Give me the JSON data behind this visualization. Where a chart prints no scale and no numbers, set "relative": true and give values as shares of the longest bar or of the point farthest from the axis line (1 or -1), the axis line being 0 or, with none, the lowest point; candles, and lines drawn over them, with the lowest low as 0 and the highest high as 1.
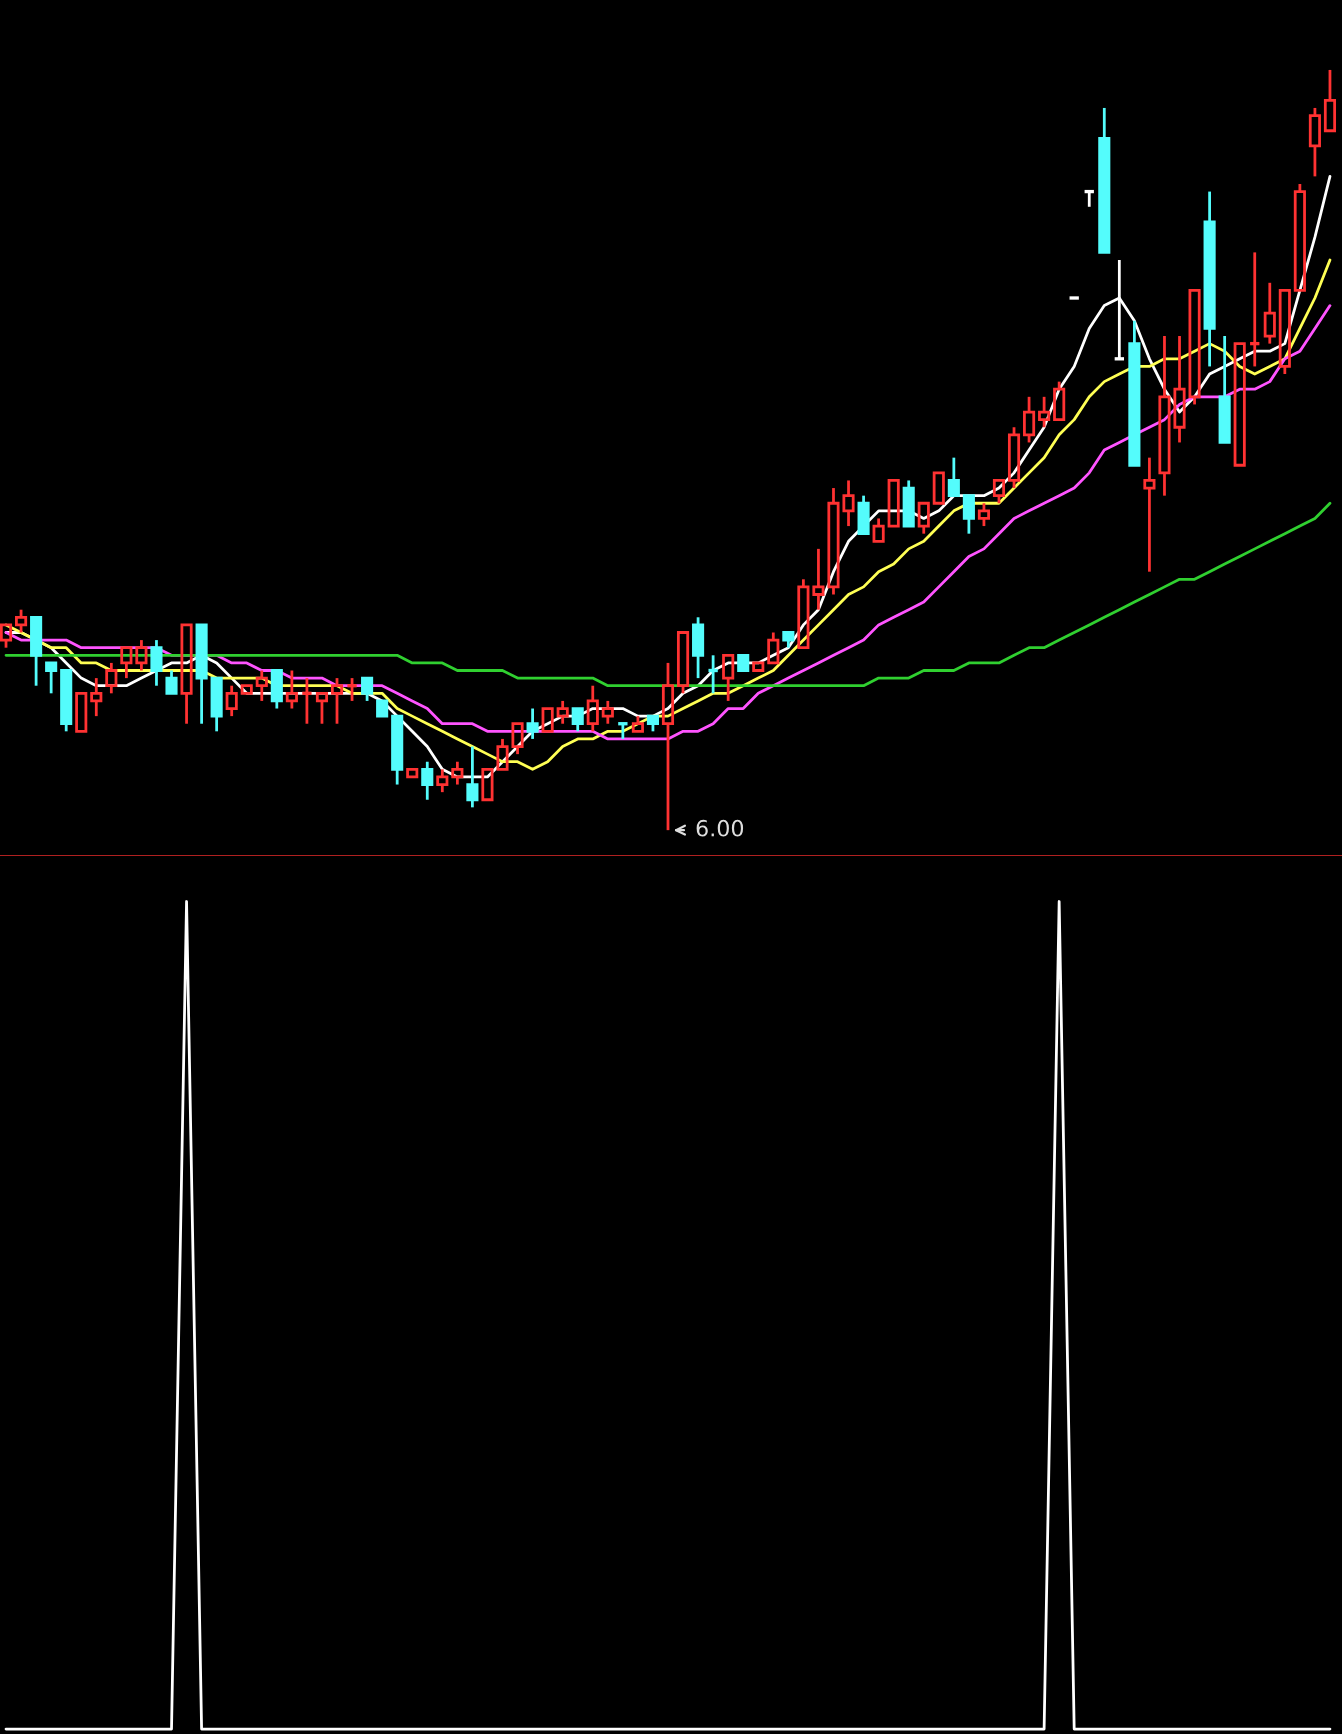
{
  "chart_data": [
    {
      "type": "candlestick",
      "relative": true,
      "categories": [
        null,
        null,
        null,
        null,
        null,
        null,
        null,
        null,
        null,
        null,
        null,
        null,
        null,
        null,
        null,
        null,
        null,
        null,
        null,
        null,
        null,
        null,
        null,
        null,
        null,
        null,
        null,
        null,
        null,
        null,
        null,
        null,
        null,
        null,
        null,
        null,
        null,
        null,
        null,
        null,
        null,
        null,
        null,
        null,
        null,
        null,
        null,
        null,
        null,
        null,
        null,
        null,
        null,
        null,
        null,
        null,
        null,
        null,
        null,
        null,
        null,
        null,
        null,
        null,
        null,
        null,
        null,
        null,
        null,
        null,
        null,
        null,
        null,
        null,
        null,
        null,
        null,
        null,
        null,
        null,
        null,
        null,
        null,
        null,
        null,
        null,
        null,
        null,
        null
      ],
      "ohlc": [
        [
          0.25,
          0.27,
          0.24,
          0.27
        ],
        [
          0.27,
          0.29,
          0.26,
          0.28
        ],
        [
          0.28,
          0.28,
          0.19,
          0.23
        ],
        [
          0.22,
          0.22,
          0.18,
          0.21
        ],
        [
          0.21,
          0.21,
          0.13,
          0.14
        ],
        [
          0.13,
          0.18,
          0.13,
          0.18
        ],
        [
          0.17,
          0.2,
          0.15,
          0.18
        ],
        [
          0.19,
          0.22,
          0.18,
          0.21
        ],
        [
          0.22,
          0.24,
          0.2,
          0.24
        ],
        [
          0.22,
          0.25,
          0.21,
          0.24
        ],
        [
          0.24,
          0.25,
          0.19,
          0.21
        ],
        [
          0.2,
          0.21,
          0.18,
          0.18
        ],
        [
          0.18,
          0.27,
          0.14,
          0.27
        ],
        [
          0.27,
          0.27,
          0.14,
          0.2
        ],
        [
          0.2,
          0.2,
          0.13,
          0.15
        ],
        [
          0.16,
          0.19,
          0.15,
          0.18
        ],
        [
          0.18,
          0.19,
          0.18,
          0.19
        ],
        [
          0.19,
          0.21,
          0.17,
          0.2
        ],
        [
          0.21,
          0.21,
          0.16,
          0.17
        ],
        [
          0.17,
          0.21,
          0.16,
          0.18
        ],
        [
          0.18,
          0.2,
          0.14,
          0.18
        ],
        [
          0.17,
          0.18,
          0.14,
          0.18
        ],
        [
          0.18,
          0.2,
          0.14,
          0.19
        ],
        [
          0.19,
          0.2,
          0.17,
          0.19
        ],
        [
          0.2,
          0.2,
          0.17,
          0.18
        ],
        [
          0.17,
          0.17,
          0.15,
          0.15
        ],
        [
          0.15,
          0.15,
          0.06,
          0.08
        ],
        [
          0.07,
          0.08,
          0.07,
          0.08
        ],
        [
          0.08,
          0.09,
          0.04,
          0.06
        ],
        [
          0.06,
          0.08,
          0.05,
          0.07
        ],
        [
          0.07,
          0.09,
          0.06,
          0.08
        ],
        [
          0.06,
          0.11,
          0.03,
          0.04
        ],
        [
          0.04,
          0.08,
          0.04,
          0.08
        ],
        [
          0.08,
          0.12,
          0.08,
          0.11
        ],
        [
          0.11,
          0.14,
          0.1,
          0.14
        ],
        [
          0.14,
          0.16,
          0.12,
          0.13
        ],
        [
          0.13,
          0.16,
          0.13,
          0.16
        ],
        [
          0.15,
          0.17,
          0.14,
          0.16
        ],
        [
          0.16,
          0.16,
          0.13,
          0.14
        ],
        [
          0.14,
          0.19,
          0.13,
          0.17
        ],
        [
          0.15,
          0.17,
          0.14,
          0.16
        ],
        [
          0.14,
          0.14,
          0.12,
          0.14
        ],
        [
          0.13,
          0.15,
          0.13,
          0.14
        ],
        [
          0.15,
          0.15,
          0.13,
          0.14
        ],
        [
          0.14,
          0.22,
          0,
          0.19
        ],
        [
          0.19,
          0.26,
          0.18,
          0.26
        ],
        [
          0.27,
          0.28,
          0.2,
          0.23
        ],
        [
          0.21,
          0.23,
          0.18,
          0.21
        ],
        [
          0.2,
          0.23,
          0.17,
          0.23
        ],
        [
          0.23,
          0.23,
          0.21,
          0.21
        ],
        [
          0.21,
          0.22,
          0.21,
          0.22
        ],
        [
          0.22,
          0.26,
          0.22,
          0.25
        ],
        [
          0.26,
          0.26,
          0.24,
          0.25
        ],
        [
          0.24,
          0.33,
          0.24,
          0.32
        ],
        [
          0.31,
          0.37,
          0.29,
          0.32
        ],
        [
          0.32,
          0.45,
          0.31,
          0.43
        ],
        [
          0.42,
          0.46,
          0.4,
          0.44
        ],
        [
          0.43,
          0.44,
          0.39,
          0.39
        ],
        [
          0.38,
          0.41,
          0.38,
          0.4
        ],
        [
          0.4,
          0.46,
          0.4,
          0.46
        ],
        [
          0.45,
          0.46,
          0.4,
          0.4
        ],
        [
          0.4,
          0.43,
          0.39,
          0.43
        ],
        [
          0.43,
          0.47,
          0.43,
          0.47
        ],
        [
          0.46,
          0.49,
          0.44,
          0.44
        ],
        [
          0.44,
          0.44,
          0.39,
          0.41
        ],
        [
          0.41,
          0.43,
          0.4,
          0.42
        ],
        [
          0.44,
          0.46,
          0.43,
          0.46
        ],
        [
          0.46,
          0.53,
          0.45,
          0.52
        ],
        [
          0.52,
          0.57,
          0.51,
          0.55
        ],
        [
          0.54,
          0.57,
          0.53,
          0.55
        ],
        [
          0.54,
          0.59,
          0.54,
          0.58
        ],
        [
          0.7,
          0.7,
          0.7,
          0.7
        ],
        [
          0.84,
          0.84,
          0.82,
          0.84
        ],
        [
          0.91,
          0.95,
          0.76,
          0.76
        ],
        [
          0.62,
          0.75,
          0.62,
          0.62
        ],
        [
          0.64,
          0.67,
          0.48,
          0.48
        ],
        [
          0.45,
          0.49,
          0.34,
          0.46
        ],
        [
          0.47,
          0.65,
          0.44,
          0.57
        ],
        [
          0.53,
          0.65,
          0.51,
          0.58
        ],
        [
          0.57,
          0.71,
          0.56,
          0.71
        ],
        [
          0.8,
          0.84,
          0.61,
          0.66
        ],
        [
          0.57,
          0.65,
          0.51,
          0.51
        ],
        [
          0.48,
          0.64,
          0.48,
          0.64
        ],
        [
          0.64,
          0.76,
          0.61,
          0.64
        ],
        [
          0.65,
          0.72,
          0.64,
          0.68
        ],
        [
          0.61,
          0.71,
          0.6,
          0.71
        ],
        [
          0.71,
          0.85,
          0.71,
          0.84
        ],
        [
          0.9,
          0.95,
          0.86,
          0.94
        ],
        [
          0.92,
          1,
          0.92,
          0.96
        ]
      ],
      "colors": [
        "#ff3232",
        "#ff3232",
        "#54fcfc",
        "#54fcfc",
        "#54fcfc",
        "#ff3232",
        "#ff3232",
        "#ff3232",
        "#ff3232",
        "#ff3232",
        "#54fcfc",
        "#54fcfc",
        "#ff3232",
        "#54fcfc",
        "#54fcfc",
        "#ff3232",
        "#ff3232",
        "#ff3232",
        "#54fcfc",
        "#ff3232",
        "#ff3232",
        "#ff3232",
        "#ff3232",
        "#ff3232",
        "#54fcfc",
        "#54fcfc",
        "#54fcfc",
        "#ff3232",
        "#54fcfc",
        "#ff3232",
        "#ff3232",
        "#54fcfc",
        "#ff3232",
        "#ff3232",
        "#ff3232",
        "#54fcfc",
        "#ff3232",
        "#ff3232",
        "#54fcfc",
        "#ff3232",
        "#ff3232",
        "#54fcfc",
        "#ff3232",
        "#54fcfc",
        "#ff3232",
        "#ff3232",
        "#54fcfc",
        "#54fcfc",
        "#ff3232",
        "#54fcfc",
        "#ff3232",
        "#ff3232",
        "#54fcfc",
        "#ff3232",
        "#ff3232",
        "#ff3232",
        "#ff3232",
        "#54fcfc",
        "#ff3232",
        "#ff3232",
        "#54fcfc",
        "#ff3232",
        "#ff3232",
        "#54fcfc",
        "#54fcfc",
        "#ff3232",
        "#ff3232",
        "#ff3232",
        "#ff3232",
        "#ff3232",
        "#ff3232",
        "#ffffff",
        "#ffffff",
        "#54fcfc",
        "#ffffff",
        "#54fcfc",
        "#ff3232",
        "#ff3232",
        "#ff3232",
        "#ff3232",
        "#54fcfc",
        "#54fcfc",
        "#ff3232",
        "#ff3232",
        "#ff3232",
        "#ff3232",
        "#ff3232",
        "#ff3232",
        "#ff3232"
      ],
      "series": [
        {
          "type": "line",
          "color": "#ffffff",
          "values": [
            0.26,
            0.26,
            0.25,
            0.24,
            0.22,
            0.2,
            0.19,
            0.19,
            0.19,
            0.2,
            0.21,
            0.22,
            0.22,
            0.23,
            0.22,
            0.2,
            0.18,
            0.18,
            0.18,
            0.18,
            0.18,
            0.18,
            0.18,
            0.18,
            0.18,
            0.17,
            0.15,
            0.13,
            0.11,
            0.08,
            0.07,
            0.07,
            0.07,
            0.09,
            0.11,
            0.13,
            0.14,
            0.15,
            0.15,
            0.16,
            0.16,
            0.16,
            0.15,
            0.15,
            0.16,
            0.18,
            0.19,
            0.21,
            0.22,
            0.22,
            0.22,
            0.23,
            0.24,
            0.27,
            0.29,
            0.34,
            0.38,
            0.4,
            0.42,
            0.42,
            0.42,
            0.41,
            0.42,
            0.44,
            0.44,
            0.44,
            0.45,
            0.47,
            0.5,
            0.53,
            0.58,
            0.61,
            0.66,
            0.69,
            0.7,
            0.67,
            0.62,
            0.58,
            0.55,
            0.57,
            0.6,
            0.61,
            0.62,
            0.63,
            0.63,
            0.64,
            0.71,
            0.78,
            0.86
          ]
        },
        {
          "type": "line",
          "color": "#ffff54",
          "values": [
            0.27,
            0.26,
            0.25,
            0.24,
            0.24,
            0.22,
            0.22,
            0.21,
            0.21,
            0.21,
            0.21,
            0.21,
            0.21,
            0.21,
            0.2,
            0.2,
            0.2,
            0.2,
            0.19,
            0.19,
            0.19,
            0.19,
            0.19,
            0.18,
            0.18,
            0.18,
            0.16,
            0.15,
            0.14,
            0.13,
            0.12,
            0.11,
            0.1,
            0.09,
            0.09,
            0.08,
            0.09,
            0.11,
            0.12,
            0.12,
            0.13,
            0.13,
            0.14,
            0.15,
            0.15,
            0.16,
            0.17,
            0.18,
            0.18,
            0.19,
            0.2,
            0.21,
            0.23,
            0.25,
            0.27,
            0.29,
            0.31,
            0.32,
            0.34,
            0.35,
            0.37,
            0.38,
            0.4,
            0.42,
            0.43,
            0.43,
            0.43,
            0.45,
            0.47,
            0.49,
            0.52,
            0.54,
            0.57,
            0.59,
            0.6,
            0.61,
            0.61,
            0.62,
            0.62,
            0.63,
            0.64,
            0.63,
            0.61,
            0.6,
            0.61,
            0.62,
            0.66,
            0.7,
            0.75
          ]
        },
        {
          "type": "line",
          "color": "#ff54ff",
          "values": [
            0.26,
            0.25,
            0.25,
            0.25,
            0.25,
            0.24,
            0.24,
            0.24,
            0.24,
            0.24,
            0.24,
            0.23,
            0.23,
            0.23,
            0.23,
            0.22,
            0.22,
            0.21,
            0.21,
            0.2,
            0.2,
            0.2,
            0.19,
            0.19,
            0.19,
            0.19,
            0.18,
            0.17,
            0.16,
            0.14,
            0.14,
            0.14,
            0.13,
            0.13,
            0.13,
            0.13,
            0.13,
            0.13,
            0.13,
            0.13,
            0.12,
            0.12,
            0.12,
            0.12,
            0.12,
            0.13,
            0.13,
            0.14,
            0.16,
            0.16,
            0.18,
            0.19,
            0.2,
            0.21,
            0.22,
            0.23,
            0.24,
            0.25,
            0.27,
            0.28,
            0.29,
            0.3,
            0.32,
            0.34,
            0.36,
            0.37,
            0.39,
            0.41,
            0.42,
            0.43,
            0.44,
            0.45,
            0.47,
            0.5,
            0.51,
            0.52,
            0.53,
            0.54,
            0.56,
            0.57,
            0.57,
            0.57,
            0.58,
            0.58,
            0.59,
            0.62,
            0.63,
            0.66,
            0.69
          ]
        },
        {
          "type": "line",
          "color": "#30d030",
          "values": [
            0.23,
            0.23,
            0.23,
            0.23,
            0.23,
            0.23,
            0.23,
            0.23,
            0.23,
            0.23,
            0.23,
            0.23,
            0.23,
            0.23,
            0.23,
            0.23,
            0.23,
            0.23,
            0.23,
            0.23,
            0.23,
            0.23,
            0.23,
            0.23,
            0.23,
            0.23,
            0.23,
            0.22,
            0.22,
            0.22,
            0.21,
            0.21,
            0.21,
            0.21,
            0.2,
            0.2,
            0.2,
            0.2,
            0.2,
            0.2,
            0.19,
            0.19,
            0.19,
            0.19,
            0.19,
            0.19,
            0.19,
            0.19,
            0.19,
            0.19,
            0.19,
            0.19,
            0.19,
            0.19,
            0.19,
            0.19,
            0.19,
            0.19,
            0.2,
            0.2,
            0.2,
            0.21,
            0.21,
            0.21,
            0.22,
            0.22,
            0.22,
            0.23,
            0.24,
            0.24,
            0.25,
            0.26,
            0.27,
            0.28,
            0.29,
            0.3,
            0.31,
            0.32,
            0.33,
            0.33,
            0.34,
            0.35,
            0.36,
            0.37,
            0.38,
            0.39,
            0.4,
            0.41,
            0.43
          ]
        }
      ],
      "annotations": [
        "6.00"
      ]
    },
    {
      "type": "line",
      "relative": true,
      "categories": [
        null,
        null,
        null,
        null,
        null,
        null,
        null,
        null,
        null,
        null,
        null,
        null,
        null,
        null,
        null,
        null,
        null,
        null,
        null,
        null,
        null,
        null,
        null,
        null,
        null,
        null,
        null,
        null,
        null,
        null,
        null,
        null,
        null,
        null,
        null,
        null,
        null,
        null,
        null,
        null,
        null,
        null,
        null,
        null,
        null,
        null,
        null,
        null,
        null,
        null,
        null,
        null,
        null,
        null,
        null,
        null,
        null,
        null,
        null,
        null,
        null,
        null,
        null,
        null,
        null,
        null,
        null,
        null,
        null,
        null,
        null,
        null,
        null,
        null,
        null,
        null,
        null,
        null,
        null,
        null,
        null,
        null,
        null,
        null,
        null,
        null,
        null,
        null,
        null
      ],
      "series": [
        {
          "color": "#ffffff",
          "values": [
            0,
            0,
            0,
            0,
            0,
            0,
            0,
            0,
            0,
            0,
            0,
            0,
            1,
            0,
            0,
            0,
            0,
            0,
            0,
            0,
            0,
            0,
            0,
            0,
            0,
            0,
            0,
            0,
            0,
            0,
            0,
            0,
            0,
            0,
            0,
            0,
            0,
            0,
            0,
            0,
            0,
            0,
            0,
            0,
            0,
            0,
            0,
            0,
            0,
            0,
            0,
            0,
            0,
            0,
            0,
            0,
            0,
            0,
            0,
            0,
            0,
            0,
            0,
            0,
            0,
            0,
            0,
            0,
            0,
            0,
            1,
            0,
            0,
            0,
            0,
            0,
            0,
            0,
            0,
            0,
            0,
            0,
            0,
            0,
            0,
            0,
            0,
            0,
            0
          ]
        }
      ]
    }
  ]
}
